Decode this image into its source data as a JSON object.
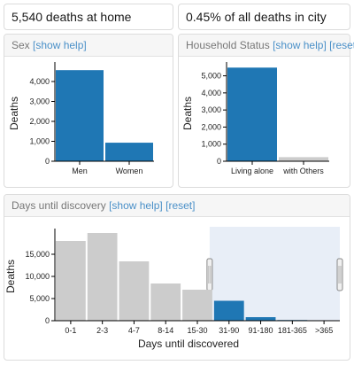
{
  "stats": {
    "deaths_at_home": "5,540 deaths at home",
    "share_of_city": "0.45% of all deaths in city"
  },
  "panels": {
    "sex": {
      "title": "Sex",
      "help": "[show help]"
    },
    "household": {
      "title": "Household Status",
      "help": "[show help]",
      "reset": "[reset]"
    },
    "days": {
      "title": "Days until discovery",
      "help": "[show help]",
      "reset": "[reset]"
    }
  },
  "colors": {
    "selected": "#1f77b4",
    "unselected": "#cccccc",
    "brush": "#e8eef7"
  },
  "chart_data": [
    {
      "type": "bar",
      "categories": [
        "Men",
        "Women"
      ],
      "values": [
        4570,
        930
      ],
      "selected": [
        true,
        true
      ],
      "ylabel": "Deaths",
      "xlabel": "",
      "ylim": [
        0,
        4800
      ],
      "yticks": [
        0,
        1000,
        2000,
        3000,
        4000
      ],
      "ytick_labels": [
        "0",
        "1,000",
        "2,000",
        "3,000",
        "4,000"
      ]
    },
    {
      "type": "bar",
      "categories": [
        "Living alone",
        "with Others"
      ],
      "values": [
        5480,
        240
      ],
      "selected": [
        true,
        false
      ],
      "ylabel": "Deaths",
      "xlabel": "",
      "ylim": [
        0,
        5600
      ],
      "yticks": [
        0,
        1000,
        2000,
        3000,
        4000,
        5000
      ],
      "ytick_labels": [
        "0",
        "1,000",
        "2,000",
        "3,000",
        "4,000",
        "5,000"
      ]
    },
    {
      "type": "bar",
      "categories": [
        "0-1",
        "2-3",
        "4-7",
        "8-14",
        "15-30",
        "31-90",
        "91-180",
        "181-365",
        ">365"
      ],
      "values": [
        18000,
        19800,
        13400,
        8400,
        7000,
        4500,
        800,
        150,
        60
      ],
      "selected": [
        false,
        false,
        false,
        false,
        false,
        true,
        true,
        true,
        true
      ],
      "ylabel": "Deaths",
      "xlabel": "Days until discovered",
      "ylim": [
        0,
        20000
      ],
      "yticks": [
        0,
        5000,
        10000,
        15000
      ],
      "ytick_labels": [
        "0",
        "5,000",
        "10,000",
        "15,000"
      ],
      "brush_range": [
        "31-90",
        ">365"
      ]
    }
  ]
}
